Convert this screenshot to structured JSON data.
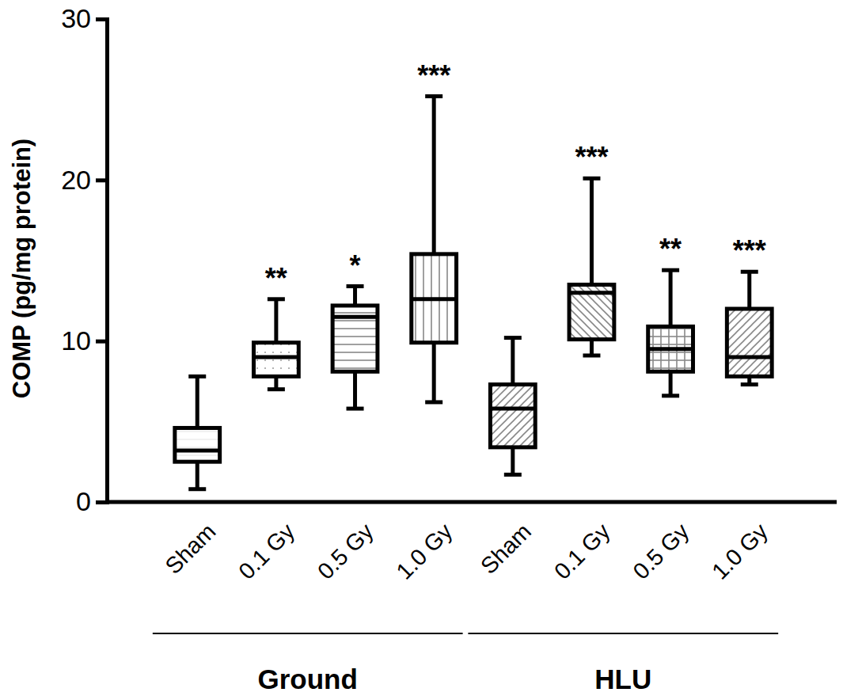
{
  "chart_data": {
    "type": "box",
    "y_label": "COMP (pg/mg protein)",
    "categories": [
      "Sham",
      "0.1 Gy",
      "0.5 Gy",
      "1.0 Gy",
      "Sham",
      "0.1 Gy",
      "0.5 Gy",
      "1.0 Gy"
    ],
    "boxes": [
      {
        "min": 0.8,
        "q1": 2.5,
        "median": 3.2,
        "q3": 4.6,
        "max": 7.8
      },
      {
        "min": 7.0,
        "q1": 7.8,
        "median": 9.0,
        "q3": 9.9,
        "max": 12.6
      },
      {
        "min": 5.8,
        "q1": 8.1,
        "median": 11.5,
        "q3": 12.2,
        "max": 13.4
      },
      {
        "min": 6.2,
        "q1": 9.9,
        "median": 12.6,
        "q3": 15.4,
        "max": 25.2
      },
      {
        "min": 1.7,
        "q1": 3.4,
        "median": 5.8,
        "q3": 7.3,
        "max": 10.2
      },
      {
        "min": 9.1,
        "q1": 10.1,
        "median": 13.0,
        "q3": 13.5,
        "max": 20.1
      },
      {
        "min": 6.6,
        "q1": 8.1,
        "median": 9.5,
        "q3": 10.9,
        "max": 14.4
      },
      {
        "min": 7.3,
        "q1": 7.8,
        "median": 9.0,
        "q3": 12.0,
        "max": 14.3
      }
    ],
    "annotations": [
      null,
      "**",
      "*",
      "***",
      null,
      "***",
      "**",
      "***"
    ],
    "group_labels": [
      "Ground",
      "HLU"
    ],
    "group_sizes": [
      4,
      4
    ],
    "color": "#000000",
    "ylim": [
      0,
      30
    ],
    "yticks": [
      0,
      10,
      20,
      30
    ],
    "grid": false
  }
}
